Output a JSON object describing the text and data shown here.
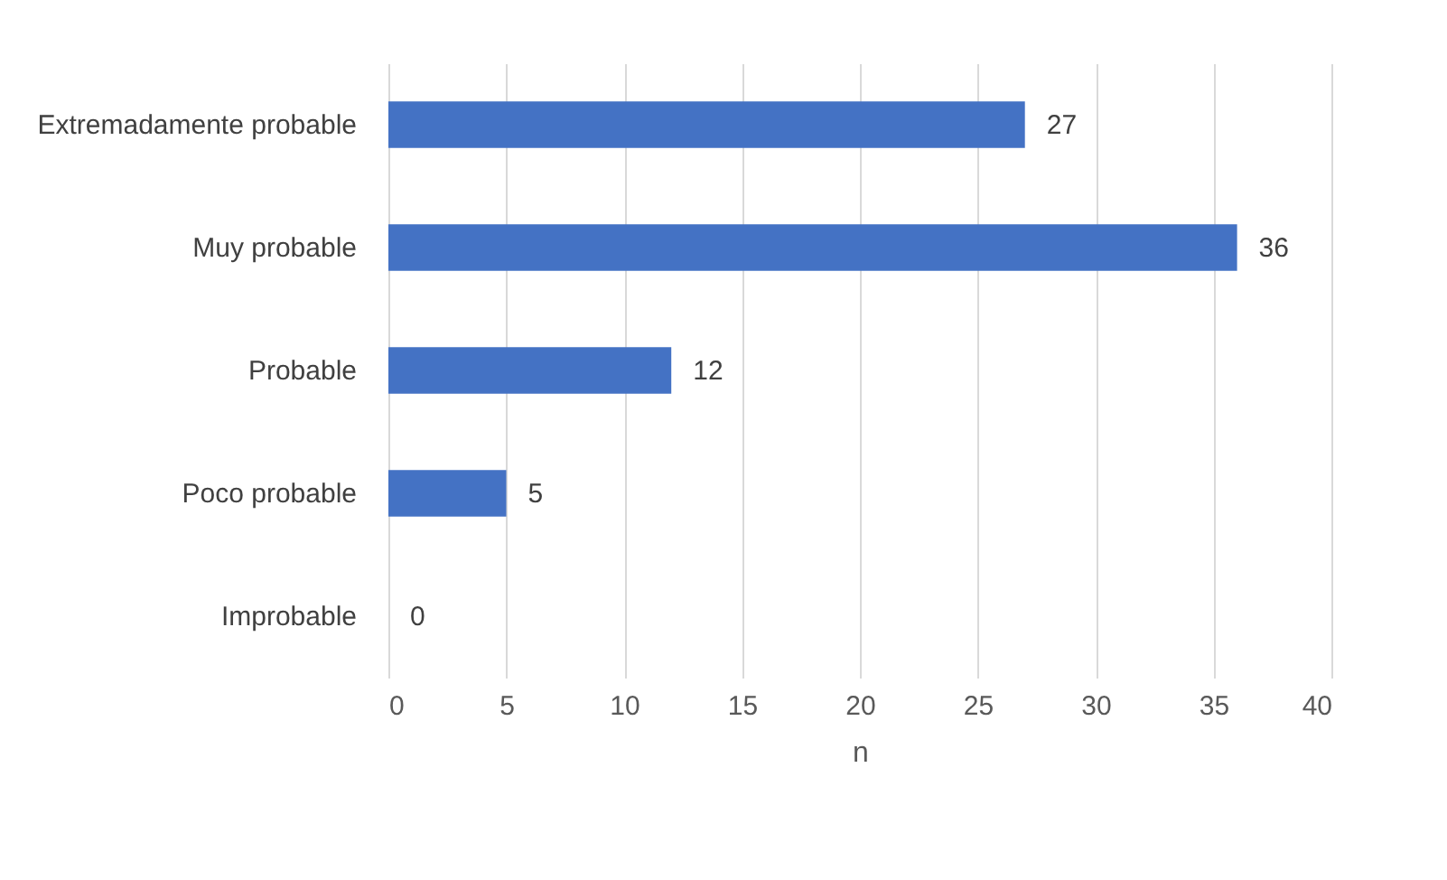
{
  "chart_data": {
    "type": "bar",
    "orientation": "horizontal",
    "xlabel": "n",
    "categories": [
      "Extremadamente probable",
      "Muy probable",
      "Probable",
      "Poco probable",
      "Improbable"
    ],
    "values": [
      27,
      36,
      12,
      5,
      0
    ],
    "color": "#4472c4",
    "xlim": [
      0,
      40
    ],
    "xticks": [
      0,
      5,
      10,
      15,
      20,
      25,
      30,
      35,
      40
    ],
    "grid": "x",
    "data_labels": true
  }
}
